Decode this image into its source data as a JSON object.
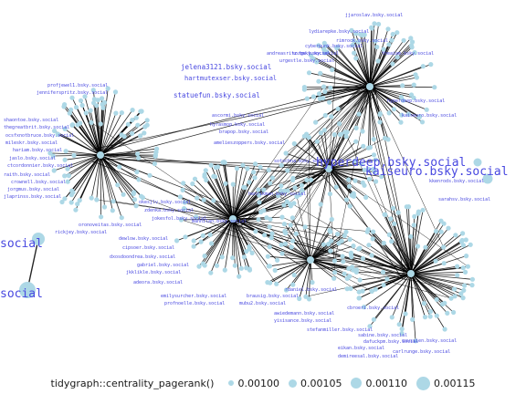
{
  "legend": {
    "title": "tidygraph::centrality_pagerank()",
    "items": [
      {
        "label": "0.00100",
        "value": 0.001
      },
      {
        "label": "0.00105",
        "value": 0.00105
      },
      {
        "label": "0.00110",
        "value": 0.0011
      },
      {
        "label": "0.00115",
        "value": 0.00115
      }
    ]
  },
  "colors": {
    "node": "#add8e6",
    "edge": "#000000",
    "label": "#4848e0",
    "legend_text": "#1a1a1a"
  },
  "node_labels": [
    "jelena3121.bsky.social",
    "hartmutexser.bsky.social",
    "statuefun.bsky.social",
    "lydiarepke.bsky.social",
    "rimrock.bsky.social",
    "amelieszoppers.bsky.social",
    "ascormi.bsky.social",
    "hyrasmop.bsky.social",
    "brapop.bsky.social",
    "profjewel1.bsky.social",
    "jenniferspritz.bsky.social",
    "shaontoe.bsky.social",
    "thegreatbrit.bsky.social",
    "ocsfxnotbruce.bsky.social",
    "mileskr.bsky.social",
    "hariam.bsky.social",
    "jaslo.bsky.social",
    "ctcordonnier.bsky.social",
    "raith.bsky.social",
    "crownell.bsky.social",
    "jorgmus.bsky.social",
    "jlaprinss.bsky.social",
    "rickjey.bsky.social",
    "oronoveitas.bsky.social",
    "dewlow.bsky.social",
    "okesjlv.bsky.social",
    "zdenka.bsky.social",
    "jokesfol.bsky.social",
    "cipsoer.bsky.social",
    "dxosdoondrea.bsky.social",
    "gabriel.bsky.social",
    "jkklikle.bsky.social",
    "adeora.bsky.social",
    "emilysurcher.bsky.social",
    "profnoelle.bsky.social",
    "mubu2.bsky.social",
    "awiedemann.bsky.social",
    "brausig.bsky.social",
    "rdaniel.bsky.social",
    "yisisance.bsky.social",
    "stefanmiller.bsky.social",
    "sabine.bsky.social",
    "dafuckpm.bsky.social",
    "eikan.bsky.social",
    "cbroeri.bsky.social",
    "demireesal.bsky.social",
    "carlrunge.bsky.social",
    "gaussien.bsky.social",
    "social",
    "social",
    "jjaroslav.bsky.social",
    "cyberpunk.bsky.social",
    "sorge.bsky.social",
    "urgestle.bsky.social",
    "andreasritz.bsky.social",
    "theaiam.bsky.social",
    "hyperdeep.bsky.social",
    "kaiseuro.bsky.social",
    "sotschna.bsky.social",
    "kkenrods.bsky.social",
    "sarahsv.bsky.social",
    "henrikman.bsky.social",
    "mannilan.bsky.social"
  ]
}
